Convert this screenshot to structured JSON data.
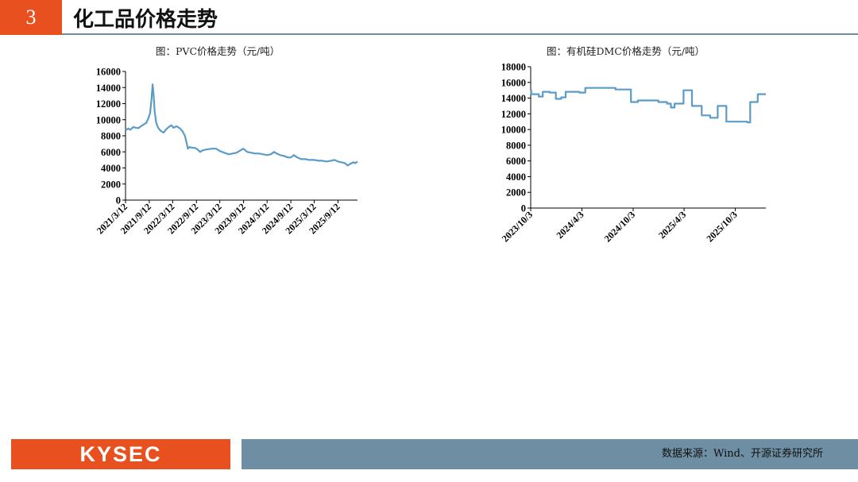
{
  "header": {
    "section_number": "3",
    "title": "化工品价格走势"
  },
  "footer": {
    "logo_text": "KYSEC",
    "source": "数据来源：Wind、开源证券研究所"
  },
  "colors": {
    "accent": "#e8501f",
    "bar": "#6d8ea3",
    "line": "#5b9bc8"
  },
  "chart_data": [
    {
      "type": "line",
      "title": "图：PVC价格走势（元/吨）",
      "xlabel": "",
      "ylabel": "",
      "ylim": [
        0,
        16000
      ],
      "yticks": [
        "0",
        "2000",
        "4000",
        "6000",
        "8000",
        "10000",
        "12000",
        "14000",
        "16000"
      ],
      "xticks": [
        "2021/3/12",
        "2021/9/12",
        "2022/3/12",
        "2022/9/12",
        "2023/3/12",
        "2023/9/12",
        "2024/3/12",
        "2024/9/12",
        "2025/3/12",
        "2025/9/12"
      ],
      "xrange": [
        "2021-03-12",
        "2026-02-10"
      ],
      "grid": false,
      "series": [
        {
          "values": [
            [
              "2021-03-12",
              8700
            ],
            [
              "2021-04-01",
              8900
            ],
            [
              "2021-04-20",
              8750
            ],
            [
              "2021-05-10",
              9100
            ],
            [
              "2021-06-01",
              9000
            ],
            [
              "2021-06-20",
              8950
            ],
            [
              "2021-07-10",
              9200
            ],
            [
              "2021-07-30",
              9400
            ],
            [
              "2021-08-20",
              9600
            ],
            [
              "2021-09-05",
              10200
            ],
            [
              "2021-09-18",
              10800
            ],
            [
              "2021-09-28",
              12300
            ],
            [
              "2021-10-08",
              14400
            ],
            [
              "2021-10-16",
              13000
            ],
            [
              "2021-10-24",
              11000
            ],
            [
              "2021-11-05",
              9600
            ],
            [
              "2021-11-20",
              9000
            ],
            [
              "2021-12-10",
              8600
            ],
            [
              "2022-01-01",
              8400
            ],
            [
              "2022-01-20",
              8800
            ],
            [
              "2022-02-10",
              9100
            ],
            [
              "2022-03-01",
              9300
            ],
            [
              "2022-03-20",
              9000
            ],
            [
              "2022-04-10",
              9200
            ],
            [
              "2022-05-01",
              9000
            ],
            [
              "2022-05-25",
              8600
            ],
            [
              "2022-06-15",
              8000
            ],
            [
              "2022-06-28",
              7100
            ],
            [
              "2022-07-08",
              6400
            ],
            [
              "2022-07-20",
              6600
            ],
            [
              "2022-08-10",
              6500
            ],
            [
              "2022-09-01",
              6500
            ],
            [
              "2022-09-20",
              6300
            ],
            [
              "2022-10-10",
              6000
            ],
            [
              "2022-11-01",
              6200
            ],
            [
              "2022-12-01",
              6300
            ],
            [
              "2023-01-10",
              6400
            ],
            [
              "2023-02-10",
              6400
            ],
            [
              "2023-03-12",
              6100
            ],
            [
              "2023-04-15",
              5900
            ],
            [
              "2023-05-20",
              5700
            ],
            [
              "2023-06-20",
              5800
            ],
            [
              "2023-07-20",
              5900
            ],
            [
              "2023-08-20",
              6200
            ],
            [
              "2023-09-10",
              6400
            ],
            [
              "2023-10-10",
              6000
            ],
            [
              "2023-11-10",
              5900
            ],
            [
              "2023-12-10",
              5800
            ],
            [
              "2024-01-10",
              5800
            ],
            [
              "2024-02-10",
              5700
            ],
            [
              "2024-03-12",
              5600
            ],
            [
              "2024-04-10",
              5700
            ],
            [
              "2024-05-05",
              6000
            ],
            [
              "2024-05-25",
              5800
            ],
            [
              "2024-06-20",
              5600
            ],
            [
              "2024-07-20",
              5500
            ],
            [
              "2024-08-20",
              5300
            ],
            [
              "2024-09-12",
              5300
            ],
            [
              "2024-10-05",
              5600
            ],
            [
              "2024-11-01",
              5300
            ],
            [
              "2024-12-01",
              5100
            ],
            [
              "2025-01-05",
              5100
            ],
            [
              "2025-02-01",
              5000
            ],
            [
              "2025-03-12",
              5000
            ],
            [
              "2025-04-15",
              4900
            ],
            [
              "2025-05-15",
              4900
            ],
            [
              "2025-06-15",
              4800
            ],
            [
              "2025-07-20",
              4900
            ],
            [
              "2025-08-15",
              5000
            ],
            [
              "2025-09-12",
              4800
            ],
            [
              "2025-10-10",
              4700
            ],
            [
              "2025-11-05",
              4600
            ],
            [
              "2025-11-25",
              4300
            ],
            [
              "2025-12-15",
              4500
            ],
            [
              "2026-01-10",
              4700
            ],
            [
              "2026-01-25",
              4600
            ],
            [
              "2026-02-10",
              4800
            ]
          ]
        }
      ]
    },
    {
      "type": "line",
      "title": "图：有机硅DMC价格走势（元/吨）",
      "xlabel": "",
      "ylabel": "",
      "ylim": [
        0,
        18000
      ],
      "yticks": [
        "0",
        "2000",
        "4000",
        "6000",
        "8000",
        "10000",
        "12000",
        "14000",
        "16000",
        "18000"
      ],
      "xticks": [
        "2023/10/3",
        "2024/4/3",
        "2024/10/3",
        "2025/4/3",
        "2025/10/3"
      ],
      "xrange": [
        "2023-10-03",
        "2026-01-20"
      ],
      "grid": false,
      "step": true,
      "series": [
        {
          "values": [
            [
              "2023-10-03",
              15000
            ],
            [
              "2023-10-05",
              14500
            ],
            [
              "2023-10-25",
              14500
            ],
            [
              "2023-11-01",
              14200
            ],
            [
              "2023-11-15",
              14800
            ],
            [
              "2023-12-10",
              14700
            ],
            [
              "2024-01-01",
              13900
            ],
            [
              "2024-01-20",
              14100
            ],
            [
              "2024-02-05",
              14800
            ],
            [
              "2024-03-01",
              14800
            ],
            [
              "2024-03-25",
              14700
            ],
            [
              "2024-04-15",
              15300
            ],
            [
              "2024-08-01",
              15100
            ],
            [
              "2024-09-15",
              15100
            ],
            [
              "2024-09-25",
              13500
            ],
            [
              "2024-10-20",
              13700
            ],
            [
              "2024-12-20",
              13700
            ],
            [
              "2025-01-01",
              13500
            ],
            [
              "2025-02-01",
              13300
            ],
            [
              "2025-02-15",
              12800
            ],
            [
              "2025-02-28",
              13300
            ],
            [
              "2025-03-20",
              13300
            ],
            [
              "2025-04-01",
              15000
            ],
            [
              "2025-04-25",
              15000
            ],
            [
              "2025-05-01",
              13000
            ],
            [
              "2025-06-05",
              11800
            ],
            [
              "2025-07-05",
              11500
            ],
            [
              "2025-08-01",
              13000
            ],
            [
              "2025-08-25",
              13000
            ],
            [
              "2025-09-01",
              11000
            ],
            [
              "2025-11-15",
              10900
            ],
            [
              "2025-11-25",
              13500
            ],
            [
              "2025-12-15",
              13500
            ],
            [
              "2025-12-22",
              14500
            ],
            [
              "2026-01-20",
              14500
            ]
          ]
        }
      ]
    }
  ]
}
